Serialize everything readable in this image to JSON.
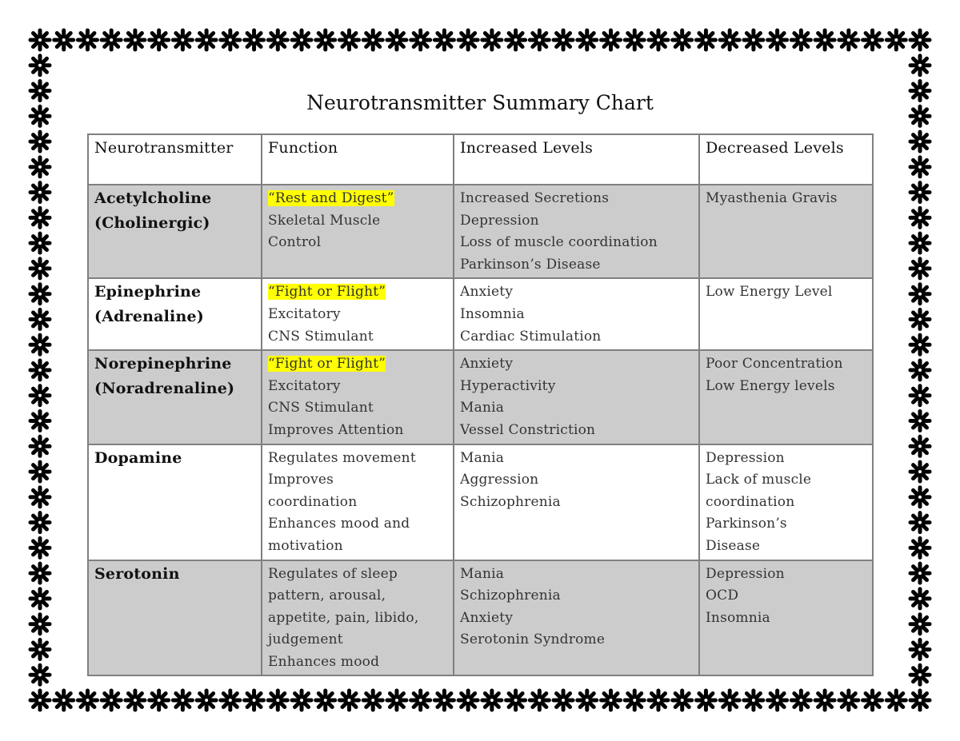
{
  "title": "Neurotransmitter Summary Chart",
  "colors": {
    "highlight": "#ffff00",
    "shaded_row": "#cccccc",
    "border": "#808080"
  },
  "border_icon": "asterisk-icon",
  "table": {
    "headers": [
      "Neurotransmitter",
      "Function",
      "Increased Levels",
      "Decreased Levels"
    ],
    "rows": [
      {
        "name": [
          "Acetylcholine",
          "(Cholinergic)"
        ],
        "shaded": true,
        "function_highlight": "“Rest and Digest”",
        "function": [
          "Skeletal Muscle",
          "Control"
        ],
        "increased": [
          "Increased Secretions",
          "Depression",
          "Loss of muscle coordination",
          "Parkinson’s Disease"
        ],
        "decreased": [
          "Myasthenia Gravis"
        ]
      },
      {
        "name": [
          "Epinephrine",
          "(Adrenaline)"
        ],
        "shaded": false,
        "function_highlight": "“Fight or Flight”",
        "function": [
          "Excitatory",
          "CNS Stimulant"
        ],
        "increased": [
          "Anxiety",
          "Insomnia",
          "Cardiac Stimulation"
        ],
        "decreased": [
          "Low Energy Level"
        ]
      },
      {
        "name": [
          "Norepinephrine",
          "(Noradrenaline)"
        ],
        "shaded": true,
        "function_highlight": "“Fight or Flight”",
        "function": [
          "Excitatory",
          "CNS Stimulant",
          "Improves Attention"
        ],
        "increased": [
          "Anxiety",
          "Hyperactivity",
          "Mania",
          "Vessel Constriction"
        ],
        "decreased": [
          "Poor Concentration",
          "Low Energy levels"
        ]
      },
      {
        "name": [
          "Dopamine"
        ],
        "shaded": false,
        "function_highlight": "",
        "function": [
          "Regulates movement",
          "Improves",
          "coordination",
          "Enhances mood and",
          "motivation"
        ],
        "increased": [
          "Mania",
          "Aggression",
          "Schizophrenia"
        ],
        "decreased": [
          "Depression",
          "Lack of muscle",
          "coordination",
          "Parkinson’s",
          "Disease"
        ]
      },
      {
        "name": [
          "Serotonin"
        ],
        "shaded": true,
        "function_highlight": "",
        "function": [
          "Regulates of sleep",
          "pattern, arousal,",
          "appetite, pain, libido,",
          "judgement",
          "Enhances mood"
        ],
        "increased": [
          "Mania",
          "Schizophrenia",
          "Anxiety",
          "Serotonin Syndrome"
        ],
        "decreased": [
          "Depression",
          "OCD",
          "Insomnia"
        ]
      }
    ]
  }
}
